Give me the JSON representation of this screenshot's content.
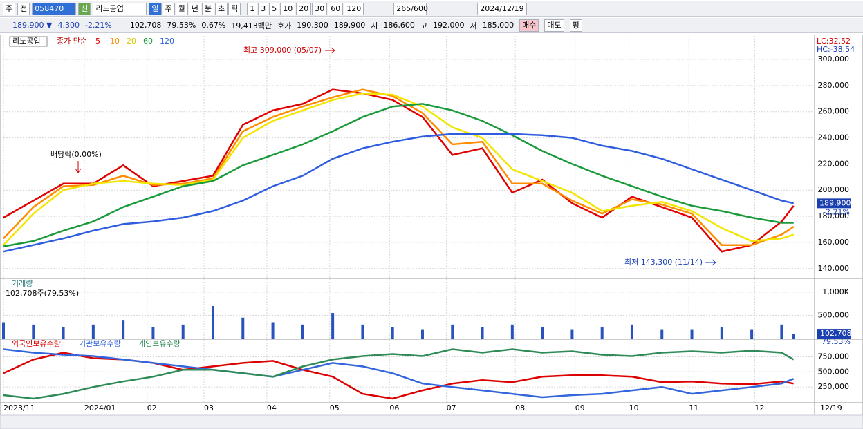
{
  "toolbar": {
    "market": "주",
    "scope": "전",
    "code": "058470",
    "badge": "신",
    "name": "리노공업",
    "periods": [
      "일",
      "주",
      "월",
      "년",
      "분",
      "초",
      "틱"
    ],
    "intervals": [
      "1",
      "3",
      "5",
      "10",
      "20",
      "30",
      "60",
      "120"
    ],
    "count": "265/600",
    "date": "2024/12/19"
  },
  "quote": {
    "price": "189,900 ▼",
    "change": "4,300",
    "rate": "-2.21%",
    "volume": "102,708",
    "volume_rate": "79.53%",
    "turnover_rate": "0.67%",
    "amount": "19,413백만",
    "ask_label": "호가",
    "ask": "190,300",
    "bid": "189,900",
    "open_label": "시",
    "open": "186,600",
    "high_label": "고",
    "high": "192,000",
    "low_label": "저",
    "low": "185,000",
    "buy": "매수",
    "sell": "매도",
    "avg": "평"
  },
  "chart_data": [
    {
      "type": "line",
      "stock": "리노공업",
      "legend_title": "종가 단순",
      "lc": "LC:32.52",
      "hc": "HC:-38.54",
      "high_note": "최고 309,000 (05/07)",
      "low_note": "최저 143,300 (11/14)",
      "dividend_note": "배당락(0.00%)",
      "last_close": 189900,
      "last_close_label": "189,900",
      "last_change": "-2.21%",
      "grid": true,
      "xlim": [
        0,
        271
      ],
      "ylim": [
        133000,
        318000
      ],
      "yticks": [
        {
          "value": 300000,
          "label": "300,000"
        },
        {
          "value": 280000,
          "label": "280,000"
        },
        {
          "value": 260000,
          "label": "260,000"
        },
        {
          "value": 240000,
          "label": "240,000"
        },
        {
          "value": 220000,
          "label": "220,000"
        },
        {
          "value": 200000,
          "label": "200,000"
        },
        {
          "value": 180000,
          "label": "180,000"
        },
        {
          "value": 160000,
          "label": "160,000"
        },
        {
          "value": 140000,
          "label": "140,000"
        }
      ],
      "x": [
        0,
        10,
        20,
        30,
        40,
        50,
        60,
        70,
        80,
        90,
        100,
        110,
        120,
        130,
        140,
        150,
        160,
        170,
        180,
        190,
        200,
        210,
        220,
        230,
        240,
        250,
        260,
        264
      ],
      "series": [
        {
          "name": "5",
          "color": "#e00000",
          "values": [
            179000,
            192000,
            205000,
            205000,
            219000,
            203000,
            207000,
            211000,
            250000,
            261000,
            266000,
            277000,
            274000,
            269000,
            256000,
            227000,
            232000,
            198000,
            208000,
            190000,
            179000,
            195000,
            187000,
            179000,
            153000,
            158000,
            176000,
            188000
          ]
        },
        {
          "name": "10",
          "color": "#ff8c00",
          "values": [
            163000,
            187000,
            203000,
            204000,
            211000,
            204000,
            205000,
            209000,
            245000,
            256000,
            264000,
            271000,
            277000,
            272000,
            259000,
            235000,
            237000,
            205000,
            205000,
            192000,
            182000,
            193000,
            189000,
            182000,
            158000,
            158000,
            166000,
            172000
          ]
        },
        {
          "name": "20",
          "color": "#f2e600",
          "values": [
            158000,
            182000,
            200000,
            205000,
            207000,
            205000,
            204000,
            208000,
            240000,
            253000,
            261000,
            269000,
            274000,
            273000,
            264000,
            248000,
            240000,
            216000,
            207000,
            198000,
            184000,
            188000,
            191000,
            184000,
            171000,
            161000,
            163000,
            166000
          ]
        },
        {
          "name": "60",
          "color": "#1a9a3a",
          "values": [
            157000,
            161000,
            169000,
            176000,
            187000,
            195000,
            203000,
            207000,
            219000,
            227000,
            235000,
            245000,
            256000,
            264000,
            266000,
            261000,
            253000,
            242000,
            230000,
            220000,
            211000,
            203000,
            195000,
            188000,
            184000,
            179000,
            175000,
            175000
          ]
        },
        {
          "name": "120",
          "color": "#2f5de0",
          "values": [
            153000,
            158000,
            163000,
            169000,
            174000,
            176000,
            179000,
            184000,
            192000,
            203000,
            211000,
            224000,
            232000,
            237000,
            241000,
            243000,
            243000,
            243000,
            242000,
            240000,
            234000,
            230000,
            224000,
            216000,
            208000,
            200000,
            192000,
            190000
          ]
        }
      ]
    },
    {
      "type": "bar",
      "title": "거래량",
      "subtitle": "102,708주(79.53%)",
      "color": "#2a52be",
      "last_label": "102,708",
      "last_rate": "79.53%",
      "xlim": [
        0,
        271
      ],
      "ylim": [
        0,
        1280000
      ],
      "yticks": [
        {
          "value": 1000000,
          "label": "1,000K"
        },
        {
          "value": 500000,
          "label": "500,000"
        }
      ],
      "x": [
        0,
        10,
        20,
        30,
        40,
        50,
        60,
        70,
        80,
        90,
        100,
        110,
        120,
        130,
        140,
        150,
        160,
        170,
        180,
        190,
        200,
        210,
        220,
        230,
        240,
        250,
        260,
        264
      ],
      "values": [
        350000,
        300000,
        250000,
        300000,
        400000,
        250000,
        300000,
        700000,
        450000,
        350000,
        300000,
        550000,
        300000,
        250000,
        200000,
        300000,
        250000,
        300000,
        250000,
        200000,
        250000,
        300000,
        200000,
        200000,
        250000,
        200000,
        300000,
        102708
      ]
    },
    {
      "type": "line",
      "xlim": [
        0,
        271
      ],
      "ylim": [
        0,
        1030000
      ],
      "grid": true,
      "yticks": [
        {
          "value": 750000,
          "label": "750,000"
        },
        {
          "value": 500000,
          "label": "500,000"
        },
        {
          "value": 250000,
          "label": "250,000"
        }
      ],
      "xticks": [
        {
          "value": 0,
          "label": "2023/11"
        },
        {
          "value": 27,
          "label": "2024/01"
        },
        {
          "value": 48,
          "label": "02"
        },
        {
          "value": 67,
          "label": "03"
        },
        {
          "value": 88,
          "label": "04"
        },
        {
          "value": 109,
          "label": "05"
        },
        {
          "value": 129,
          "label": "06"
        },
        {
          "value": 148,
          "label": "07"
        },
        {
          "value": 171,
          "label": "08"
        },
        {
          "value": 191,
          "label": "09"
        },
        {
          "value": 209,
          "label": "10"
        },
        {
          "value": 229,
          "label": "11"
        },
        {
          "value": 251,
          "label": "12"
        }
      ],
      "last_date": "12/19",
      "x": [
        0,
        10,
        20,
        30,
        40,
        50,
        60,
        70,
        80,
        90,
        100,
        110,
        120,
        130,
        140,
        150,
        160,
        170,
        180,
        190,
        200,
        210,
        220,
        230,
        240,
        250,
        260,
        264
      ],
      "series": [
        {
          "name": "외국인보유수량",
          "color": "#dd0000",
          "values": [
            477000,
            705000,
            818000,
            727000,
            705000,
            648000,
            534000,
            591000,
            648000,
            682000,
            534000,
            420000,
            136000,
            57000,
            193000,
            307000,
            364000,
            330000,
            420000,
            443000,
            443000,
            420000,
            330000,
            341000,
            307000,
            295000,
            341000,
            307000
          ]
        },
        {
          "name": "기관보유수량",
          "color": "#3366dd",
          "values": [
            875000,
            818000,
            784000,
            761000,
            705000,
            648000,
            591000,
            534000,
            477000,
            420000,
            534000,
            648000,
            591000,
            477000,
            307000,
            250000,
            193000,
            136000,
            80000,
            114000,
            136000,
            193000,
            250000,
            136000,
            193000,
            250000,
            307000,
            386000
          ]
        },
        {
          "name": "개인보유수량",
          "color": "#2e8b57",
          "values": [
            114000,
            57000,
            136000,
            250000,
            341000,
            420000,
            534000,
            534000,
            477000,
            420000,
            591000,
            705000,
            761000,
            795000,
            761000,
            875000,
            818000,
            875000,
            818000,
            841000,
            784000,
            761000,
            818000,
            841000,
            818000,
            852000,
            818000,
            705000
          ]
        }
      ]
    }
  ]
}
